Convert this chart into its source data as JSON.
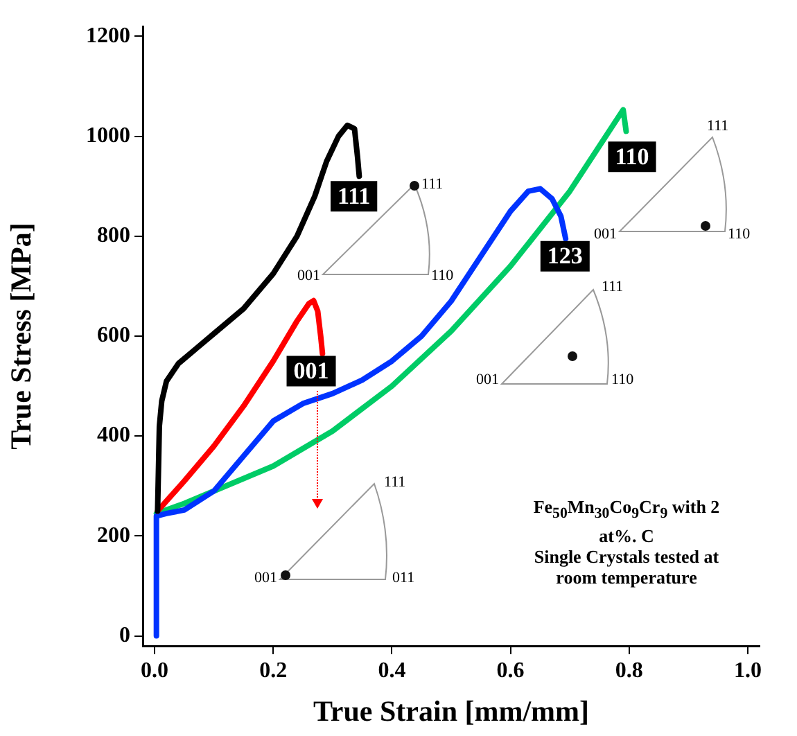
{
  "chart_data": {
    "type": "line",
    "xlabel": "True Strain [mm/mm]",
    "ylabel": "True Stress [MPa]",
    "xlim": [
      -0.02,
      1.02
    ],
    "ylim": [
      -20,
      1220
    ],
    "xticks": [
      {
        "value": 0,
        "label": "0.0"
      },
      0.2,
      0.4,
      0.6,
      0.8,
      {
        "value": 1,
        "label": "1.0"
      }
    ],
    "yticks": [
      0,
      200,
      400,
      600,
      800,
      1000,
      1200
    ],
    "grid": false,
    "legend": false,
    "marker": "none",
    "line_style": "solid",
    "series": [
      {
        "color": "#000000",
        "x": [
          0.005,
          0.008,
          0.012,
          0.02,
          0.04,
          0.07,
          0.1,
          0.15,
          0.2,
          0.24,
          0.27,
          0.29,
          0.31,
          0.325,
          0.337,
          0.342,
          0.345
        ],
        "values": [
          250,
          420,
          470,
          510,
          545,
          575,
          605,
          655,
          725,
          800,
          880,
          950,
          1000,
          1022,
          1015,
          960,
          920
        ]
      },
      {
        "color": "#ff0000",
        "x": [
          0.005,
          0.02,
          0.05,
          0.1,
          0.15,
          0.2,
          0.24,
          0.26,
          0.268,
          0.275,
          0.28,
          0.283
        ],
        "values": [
          250,
          270,
          310,
          380,
          460,
          550,
          630,
          665,
          671,
          650,
          600,
          565
        ]
      },
      {
        "color": "#0033ff",
        "x": [
          0.003,
          0.003,
          0.02,
          0.05,
          0.1,
          0.15,
          0.2,
          0.25,
          0.3,
          0.35,
          0.4,
          0.45,
          0.5,
          0.55,
          0.6,
          0.63,
          0.65,
          0.67,
          0.685,
          0.693
        ],
        "values": [
          0,
          240,
          245,
          252,
          290,
          360,
          430,
          465,
          485,
          512,
          550,
          600,
          670,
          760,
          850,
          890,
          895,
          875,
          840,
          795
        ]
      },
      {
        "color": "#00cc66",
        "x": [
          0.003,
          0.05,
          0.1,
          0.2,
          0.3,
          0.4,
          0.5,
          0.6,
          0.7,
          0.79,
          0.795
        ],
        "values": [
          245,
          265,
          290,
          340,
          410,
          500,
          610,
          740,
          890,
          1053,
          1010
        ]
      }
    ],
    "annotations": [
      {
        "text": "111",
        "x": 0.336,
        "y": 880
      },
      {
        "text": "001",
        "x": 0.264,
        "y": 530
      },
      {
        "text": "123",
        "x": 0.692,
        "y": 760
      },
      {
        "text": "110",
        "x": 0.805,
        "y": 959
      },
      "111",
      "001",
      "110",
      "111",
      "001",
      "110",
      "111",
      "001",
      "110",
      "111",
      "001",
      "011",
      "Fe$_{50}$Mn$_{30}$Co$_{9}$Cr$_{9}$ with 2\nat%. C\nSingle Crystals tested at\nroom temperature"
    ]
  }
}
